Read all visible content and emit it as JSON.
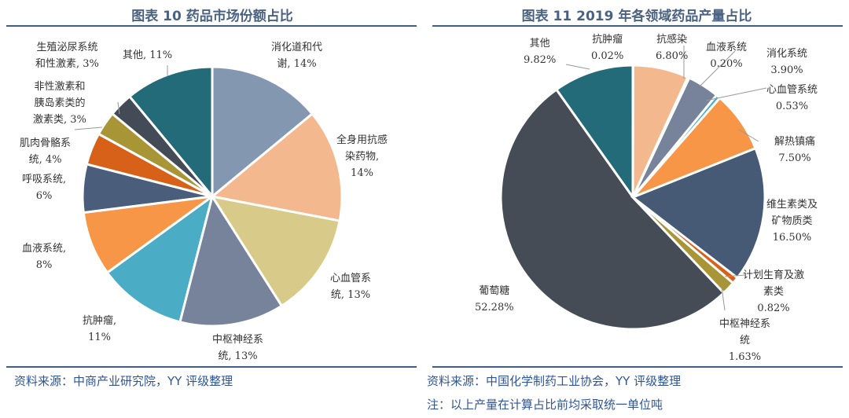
{
  "chart_data": [
    {
      "type": "pie",
      "title": "图表 10 药品市场份额占比",
      "source": "资料来源：中商产业研究院，YY 评级整理",
      "labels": [
        "消化道和代\n谢, 14%",
        "全身用抗感\n染药物,\n14%",
        "心血管系\n统, 13%",
        "中枢神经系\n统, 13%",
        "抗肿瘤,\n11%",
        "血液系统,\n8%",
        "呼吸系统,\n6%",
        "肌肉骨骼系\n统, 4%",
        "非性激素和\n胰岛素类的\n激素类, 3%",
        "生殖泌尿系统\n和性激素, 3%",
        "其他, 11%"
      ],
      "values": [
        14,
        14,
        13,
        13,
        11,
        8,
        6,
        4,
        3,
        3,
        11
      ],
      "colors": [
        "#8497b0",
        "#f4b88e",
        "#d8cb8a",
        "#76839a",
        "#4bacc6",
        "#f79646",
        "#4a5e7b",
        "#d8611a",
        "#a89536",
        "#434b57",
        "#246b7a"
      ]
    },
    {
      "type": "pie",
      "title": "图表 11 2019 年各领域药品产量占比",
      "source": "资料来源：中国化学制药工业协会，YY 评级整理",
      "note": "注：以上产量在计算占比前均采取统一单位吨",
      "labels": [
        "抗肿瘤\n0.02%",
        "抗感染\n6.80%",
        "血液系统\n0.20%",
        "消化系统\n3.90%",
        "心血管系统\n0.53%",
        "解热镇痛\n7.50%",
        "维生素类及\n矿物质类\n16.50%",
        "计划生育及激\n素类\n0.82%",
        "中枢神经系\n统\n1.63%",
        "葡萄糖\n52.28%",
        "其他\n9.82%"
      ],
      "values": [
        0.02,
        6.8,
        0.2,
        3.9,
        0.53,
        7.5,
        16.5,
        0.82,
        1.63,
        52.28,
        9.82
      ],
      "colors": [
        "#c0504d",
        "#f4b88e",
        "#9ab",
        "#76839a",
        "#4bacc6",
        "#f79646",
        "#475a75",
        "#d8611a",
        "#a89536",
        "#464c56",
        "#246b7a"
      ]
    }
  ]
}
